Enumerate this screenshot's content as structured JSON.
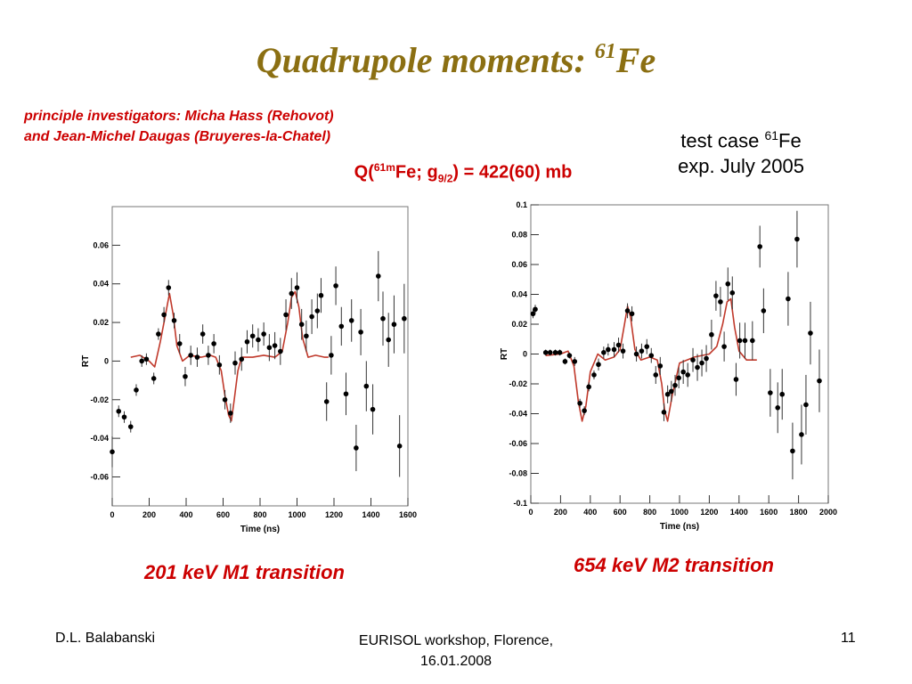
{
  "slide": {
    "title_main": "Quadrupole moments: ",
    "title_sup": "61",
    "title_element": "Fe",
    "investigators_line1": "principle investigators: Micha Hass (Rehovot)",
    "investigators_line2": "and Jean-Michel Daugas (Bruyeres-la-Chatel)",
    "testcase_prefix": "test case ",
    "testcase_sup": "61",
    "testcase_element": "Fe",
    "testcase_line2": "exp. July 2005",
    "q_prefix": "Q(",
    "q_sup": "61m",
    "q_mid": "Fe; g",
    "q_sub": "9/2",
    "q_suffix": ") = 422(60) mb",
    "caption_left": "201 keV M1 transition",
    "caption_right": "654 keV M2 transition",
    "footer_left": "D.L. Balabanski",
    "footer_center_line1": "EURISOL workshop, Florence,",
    "footer_center_line2": "16.01.2008",
    "footer_right": "11"
  },
  "colors": {
    "title": "#8b6f12",
    "accent": "#cc0000",
    "fit_curve": "#c0392b"
  },
  "chart_data": [
    {
      "type": "scatter",
      "xlabel": "Time (ns)",
      "ylabel": "RT",
      "xlim": [
        0,
        1600
      ],
      "ylim": [
        -0.075,
        0.08
      ],
      "xticks": [
        0,
        200,
        400,
        600,
        800,
        1000,
        1200,
        1400,
        1600
      ],
      "xtick_labels": [
        "0",
        "200",
        "400",
        "600",
        "800",
        "1000",
        "1200",
        "1400",
        "1600"
      ],
      "yticks": [
        -0.06,
        -0.04,
        -0.02,
        0,
        0.02,
        0.04,
        0.06
      ],
      "ytick_labels": [
        "-0.06",
        "-0.04",
        "-0.02",
        "0",
        "0.02",
        "0.04",
        "0.06"
      ],
      "points": [
        {
          "x": 0,
          "y": -0.047,
          "err": 0.008
        },
        {
          "x": 35,
          "y": -0.026,
          "err": 0.003
        },
        {
          "x": 65,
          "y": -0.029,
          "err": 0.003
        },
        {
          "x": 100,
          "y": -0.034,
          "err": 0.003
        },
        {
          "x": 130,
          "y": -0.015,
          "err": 0.003
        },
        {
          "x": 160,
          "y": 0.0,
          "err": 0.003
        },
        {
          "x": 185,
          "y": 0.001,
          "err": 0.003
        },
        {
          "x": 225,
          "y": -0.009,
          "err": 0.003
        },
        {
          "x": 250,
          "y": 0.014,
          "err": 0.003
        },
        {
          "x": 280,
          "y": 0.024,
          "err": 0.004
        },
        {
          "x": 305,
          "y": 0.038,
          "err": 0.004
        },
        {
          "x": 335,
          "y": 0.021,
          "err": 0.004
        },
        {
          "x": 365,
          "y": 0.009,
          "err": 0.005
        },
        {
          "x": 395,
          "y": -0.008,
          "err": 0.005
        },
        {
          "x": 425,
          "y": 0.003,
          "err": 0.005
        },
        {
          "x": 460,
          "y": 0.002,
          "err": 0.005
        },
        {
          "x": 490,
          "y": 0.014,
          "err": 0.005
        },
        {
          "x": 520,
          "y": 0.003,
          "err": 0.005
        },
        {
          "x": 550,
          "y": 0.009,
          "err": 0.005
        },
        {
          "x": 580,
          "y": -0.002,
          "err": 0.005
        },
        {
          "x": 610,
          "y": -0.02,
          "err": 0.005
        },
        {
          "x": 640,
          "y": -0.027,
          "err": 0.005
        },
        {
          "x": 665,
          "y": -0.001,
          "err": 0.006
        },
        {
          "x": 700,
          "y": 0.001,
          "err": 0.006
        },
        {
          "x": 730,
          "y": 0.01,
          "err": 0.006
        },
        {
          "x": 760,
          "y": 0.013,
          "err": 0.006
        },
        {
          "x": 790,
          "y": 0.011,
          "err": 0.006
        },
        {
          "x": 820,
          "y": 0.014,
          "err": 0.006
        },
        {
          "x": 850,
          "y": 0.007,
          "err": 0.007
        },
        {
          "x": 880,
          "y": 0.008,
          "err": 0.007
        },
        {
          "x": 910,
          "y": 0.005,
          "err": 0.007
        },
        {
          "x": 940,
          "y": 0.024,
          "err": 0.008
        },
        {
          "x": 970,
          "y": 0.035,
          "err": 0.008
        },
        {
          "x": 1000,
          "y": 0.038,
          "err": 0.008
        },
        {
          "x": 1025,
          "y": 0.019,
          "err": 0.008
        },
        {
          "x": 1050,
          "y": 0.013,
          "err": 0.008
        },
        {
          "x": 1080,
          "y": 0.023,
          "err": 0.009
        },
        {
          "x": 1110,
          "y": 0.026,
          "err": 0.009
        },
        {
          "x": 1130,
          "y": 0.034,
          "err": 0.009
        },
        {
          "x": 1160,
          "y": -0.021,
          "err": 0.01
        },
        {
          "x": 1185,
          "y": 0.003,
          "err": 0.01
        },
        {
          "x": 1210,
          "y": 0.039,
          "err": 0.01
        },
        {
          "x": 1240,
          "y": 0.018,
          "err": 0.01
        },
        {
          "x": 1265,
          "y": -0.017,
          "err": 0.011
        },
        {
          "x": 1295,
          "y": 0.021,
          "err": 0.011
        },
        {
          "x": 1320,
          "y": -0.045,
          "err": 0.012
        },
        {
          "x": 1345,
          "y": 0.015,
          "err": 0.012
        },
        {
          "x": 1375,
          "y": -0.013,
          "err": 0.013
        },
        {
          "x": 1410,
          "y": -0.025,
          "err": 0.013
        },
        {
          "x": 1440,
          "y": 0.044,
          "err": 0.013
        },
        {
          "x": 1465,
          "y": 0.022,
          "err": 0.014
        },
        {
          "x": 1495,
          "y": 0.011,
          "err": 0.014
        },
        {
          "x": 1525,
          "y": 0.019,
          "err": 0.015
        },
        {
          "x": 1555,
          "y": -0.044,
          "err": 0.016
        },
        {
          "x": 1580,
          "y": 0.022,
          "err": 0.018
        }
      ],
      "fit_curve": {
        "x": [
          100,
          150,
          200,
          230,
          260,
          290,
          310,
          330,
          350,
          380,
          420,
          480,
          530,
          560,
          590,
          610,
          630,
          645,
          660,
          680,
          700,
          760,
          820,
          880,
          920,
          950,
          970,
          990,
          1010,
          1030,
          1060,
          1100,
          1150,
          1170
        ],
        "y": [
          0.002,
          0.003,
          0.0,
          -0.003,
          0.01,
          0.025,
          0.035,
          0.024,
          0.008,
          0.0,
          0.003,
          0.002,
          0.003,
          0.002,
          -0.005,
          -0.018,
          -0.028,
          -0.031,
          -0.02,
          -0.005,
          0.002,
          0.002,
          0.003,
          0.002,
          0.005,
          0.02,
          0.033,
          0.036,
          0.028,
          0.012,
          0.002,
          0.003,
          0.002,
          0.002
        ]
      }
    },
    {
      "type": "scatter",
      "xlabel": "Time (ns)",
      "ylabel": "RT",
      "xlim": [
        0,
        2000
      ],
      "ylim": [
        -0.1,
        0.1
      ],
      "xticks": [
        0,
        200,
        400,
        600,
        800,
        1000,
        1200,
        1400,
        1600,
        1800,
        2000
      ],
      "xtick_labels": [
        "0",
        "200",
        "400",
        "600",
        "800",
        "1000",
        "1200",
        "1400",
        "1600",
        "1800",
        "2000"
      ],
      "yticks": [
        -0.1,
        -0.08,
        -0.06,
        -0.04,
        -0.02,
        0,
        0.02,
        0.04,
        0.06,
        0.08,
        0.1
      ],
      "ytick_labels": [
        "-0.1",
        "-0.08",
        "-0.06",
        "-0.04",
        "-0.02",
        "0",
        "0.02",
        "0.04",
        "0.06",
        "0.08",
        "0.1"
      ],
      "points": [
        {
          "x": 15,
          "y": 0.027,
          "err": 0.003
        },
        {
          "x": 30,
          "y": 0.03,
          "err": 0.003
        },
        {
          "x": 100,
          "y": 0.001,
          "err": 0.002
        },
        {
          "x": 130,
          "y": 0.001,
          "err": 0.002
        },
        {
          "x": 165,
          "y": 0.001,
          "err": 0.002
        },
        {
          "x": 195,
          "y": 0.001,
          "err": 0.002
        },
        {
          "x": 230,
          "y": -0.005,
          "err": 0.002
        },
        {
          "x": 260,
          "y": -0.001,
          "err": 0.002
        },
        {
          "x": 295,
          "y": -0.005,
          "err": 0.003
        },
        {
          "x": 330,
          "y": -0.033,
          "err": 0.003
        },
        {
          "x": 360,
          "y": -0.038,
          "err": 0.003
        },
        {
          "x": 390,
          "y": -0.022,
          "err": 0.003
        },
        {
          "x": 425,
          "y": -0.014,
          "err": 0.003
        },
        {
          "x": 455,
          "y": -0.007,
          "err": 0.004
        },
        {
          "x": 490,
          "y": 0.001,
          "err": 0.004
        },
        {
          "x": 520,
          "y": 0.003,
          "err": 0.004
        },
        {
          "x": 560,
          "y": 0.003,
          "err": 0.005
        },
        {
          "x": 590,
          "y": 0.006,
          "err": 0.005
        },
        {
          "x": 620,
          "y": 0.002,
          "err": 0.005
        },
        {
          "x": 650,
          "y": 0.029,
          "err": 0.005
        },
        {
          "x": 680,
          "y": 0.027,
          "err": 0.005
        },
        {
          "x": 710,
          "y": 0.0,
          "err": 0.005
        },
        {
          "x": 745,
          "y": 0.002,
          "err": 0.005
        },
        {
          "x": 780,
          "y": 0.005,
          "err": 0.005
        },
        {
          "x": 810,
          "y": -0.001,
          "err": 0.005
        },
        {
          "x": 840,
          "y": -0.014,
          "err": 0.006
        },
        {
          "x": 870,
          "y": -0.008,
          "err": 0.006
        },
        {
          "x": 895,
          "y": -0.039,
          "err": 0.006
        },
        {
          "x": 920,
          "y": -0.027,
          "err": 0.006
        },
        {
          "x": 945,
          "y": -0.025,
          "err": 0.007
        },
        {
          "x": 970,
          "y": -0.021,
          "err": 0.007
        },
        {
          "x": 995,
          "y": -0.016,
          "err": 0.007
        },
        {
          "x": 1025,
          "y": -0.012,
          "err": 0.008
        },
        {
          "x": 1055,
          "y": -0.014,
          "err": 0.008
        },
        {
          "x": 1090,
          "y": -0.004,
          "err": 0.008
        },
        {
          "x": 1120,
          "y": -0.009,
          "err": 0.009
        },
        {
          "x": 1150,
          "y": -0.006,
          "err": 0.009
        },
        {
          "x": 1180,
          "y": -0.003,
          "err": 0.009
        },
        {
          "x": 1215,
          "y": 0.013,
          "err": 0.01
        },
        {
          "x": 1245,
          "y": 0.039,
          "err": 0.01
        },
        {
          "x": 1275,
          "y": 0.035,
          "err": 0.01
        },
        {
          "x": 1300,
          "y": 0.005,
          "err": 0.01
        },
        {
          "x": 1325,
          "y": 0.047,
          "err": 0.011
        },
        {
          "x": 1355,
          "y": 0.041,
          "err": 0.011
        },
        {
          "x": 1380,
          "y": -0.017,
          "err": 0.011
        },
        {
          "x": 1405,
          "y": 0.009,
          "err": 0.012
        },
        {
          "x": 1440,
          "y": 0.009,
          "err": 0.012
        },
        {
          "x": 1490,
          "y": 0.009,
          "err": 0.013
        },
        {
          "x": 1540,
          "y": 0.072,
          "err": 0.014
        },
        {
          "x": 1565,
          "y": 0.029,
          "err": 0.015
        },
        {
          "x": 1610,
          "y": -0.026,
          "err": 0.016
        },
        {
          "x": 1660,
          "y": -0.036,
          "err": 0.017
        },
        {
          "x": 1690,
          "y": -0.027,
          "err": 0.017
        },
        {
          "x": 1730,
          "y": 0.037,
          "err": 0.018
        },
        {
          "x": 1760,
          "y": -0.065,
          "err": 0.019
        },
        {
          "x": 1790,
          "y": 0.077,
          "err": 0.019
        },
        {
          "x": 1820,
          "y": -0.054,
          "err": 0.02
        },
        {
          "x": 1850,
          "y": -0.034,
          "err": 0.02
        },
        {
          "x": 1880,
          "y": 0.014,
          "err": 0.021
        },
        {
          "x": 1940,
          "y": -0.018,
          "err": 0.021
        }
      ],
      "fit_curve": {
        "x": [
          100,
          200,
          250,
          290,
          320,
          345,
          370,
          400,
          450,
          500,
          560,
          600,
          630,
          650,
          670,
          700,
          740,
          800,
          850,
          880,
          900,
          920,
          950,
          1000,
          1100,
          1200,
          1250,
          1290,
          1320,
          1345,
          1370,
          1400,
          1450,
          1520
        ],
        "y": [
          -0.001,
          0.0,
          0.002,
          -0.008,
          -0.032,
          -0.045,
          -0.035,
          -0.012,
          0.0,
          -0.004,
          -0.002,
          0.003,
          0.02,
          0.032,
          0.025,
          0.003,
          -0.004,
          -0.002,
          -0.004,
          -0.02,
          -0.038,
          -0.045,
          -0.028,
          -0.006,
          -0.002,
          0.0,
          0.005,
          0.02,
          0.035,
          0.037,
          0.018,
          0.002,
          -0.004,
          -0.004
        ]
      }
    }
  ]
}
